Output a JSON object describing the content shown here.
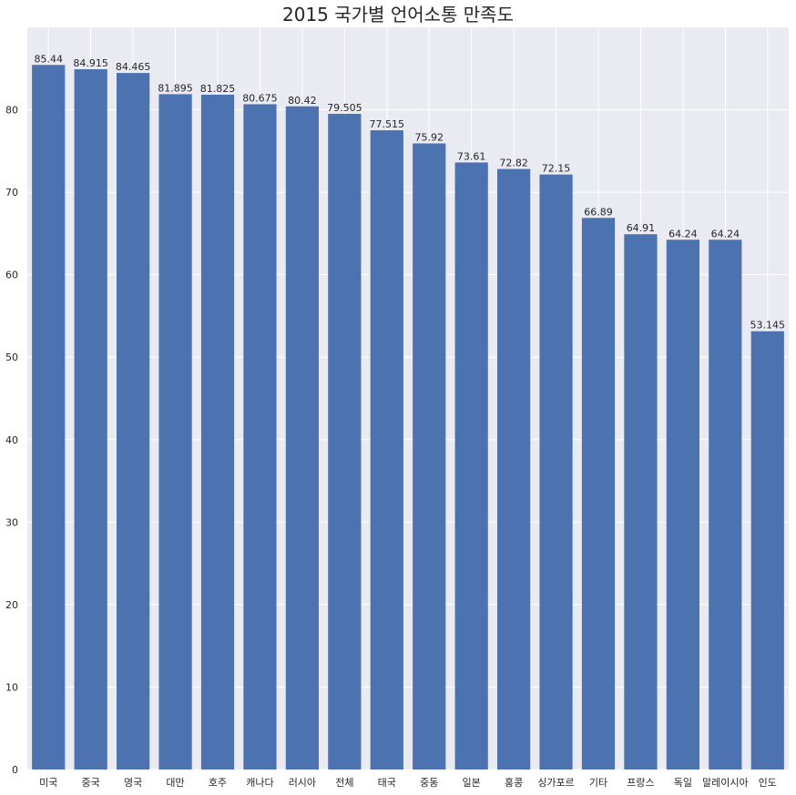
{
  "chart_data": {
    "type": "bar",
    "title": "2015 국가별 언어소통 만족도",
    "xlabel": "",
    "ylabel": "",
    "categories": [
      "미국",
      "중국",
      "영국",
      "대만",
      "호주",
      "캐나다",
      "러시아",
      "전체",
      "태국",
      "중동",
      "일본",
      "홍콩",
      "싱가포르",
      "기타",
      "프랑스",
      "독일",
      "말레이시아",
      "인도"
    ],
    "values": [
      85.44,
      84.915,
      84.465,
      81.895,
      81.825,
      80.675,
      80.42,
      79.505,
      77.515,
      75.92,
      73.61,
      72.82,
      72.15,
      66.89,
      64.91,
      64.24,
      64.24,
      53.145
    ],
    "value_labels": [
      "85.44",
      "84.915",
      "84.465",
      "81.895",
      "81.825",
      "80.675",
      "80.42",
      "79.505",
      "77.515",
      "75.92",
      "73.61",
      "72.82",
      "72.15",
      "66.89",
      "64.91",
      "64.24",
      "64.24",
      "53.145"
    ],
    "ylim": [
      0,
      90
    ],
    "yticks": [
      0,
      10,
      20,
      30,
      40,
      50,
      60,
      70,
      80
    ],
    "grid": true,
    "colors": {
      "bar": "#4c72b0",
      "background": "#eaeaf2",
      "grid": "#ffffff",
      "text": "#262626"
    }
  }
}
